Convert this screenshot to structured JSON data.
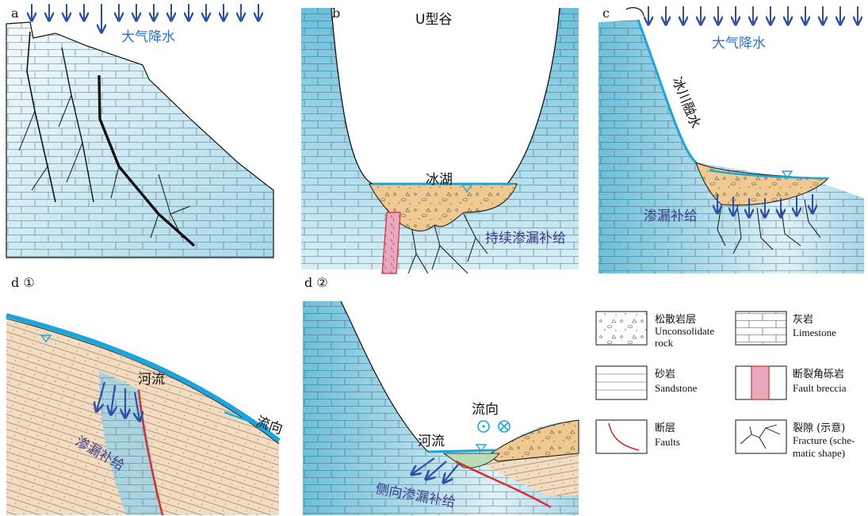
{
  "panels": {
    "a": {
      "letter": "a",
      "rain_label": "大气降水"
    },
    "b": {
      "letter": "b",
      "valley_label": "U型谷",
      "lake_label": "冰湖",
      "recharge_label": "持续渗漏补给"
    },
    "c": {
      "letter": "c",
      "rain_label": "大气降水",
      "meltwater_label": "冰川融水",
      "recharge_label": "渗漏补给"
    },
    "d1": {
      "letter": "d ①",
      "river_label": "河流",
      "flow_label": "流向",
      "recharge_label": "渗漏补给"
    },
    "d2": {
      "letter": "d ②",
      "river_label": "河流",
      "flow_label": "流向",
      "recharge_label": "侧向渗漏补给"
    }
  },
  "legend": [
    {
      "icon": "unconsolidated-rock-swatch",
      "cn": "松散岩层",
      "en": [
        "Unconsolidate",
        "rock"
      ]
    },
    {
      "icon": "limestone-swatch",
      "cn": "灰岩",
      "en": [
        "Limestone"
      ]
    },
    {
      "icon": "sandstone-swatch",
      "cn": "砂岩",
      "en": [
        "Sandstone"
      ]
    },
    {
      "icon": "fault-breccia-swatch",
      "cn": "断裂角砾岩",
      "en": [
        "Fault breccia"
      ]
    },
    {
      "icon": "fault-swatch",
      "cn": "断层",
      "en": [
        "Faults"
      ]
    },
    {
      "icon": "fracture-swatch",
      "cn": "裂隙 (示意)",
      "en": [
        "Fracture (sche-",
        "matic shape)"
      ]
    }
  ],
  "colors": {
    "rock_light": "#e8f5fa",
    "rock_blue": "#9dd3e6",
    "water": "#1aa6dc",
    "arrow": "#2c4fa8",
    "sediment": "#efc98f",
    "sandstone": "#f3dcc0",
    "breccia": "#e8a9bf",
    "fault": "#d62c2c"
  }
}
